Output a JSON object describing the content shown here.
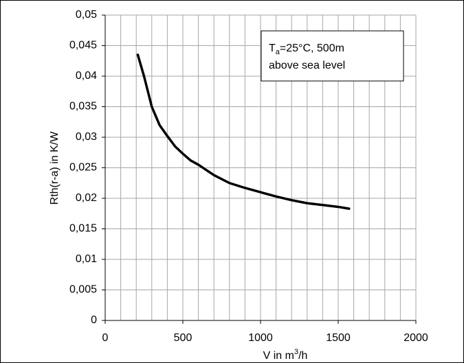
{
  "chart_data": {
    "type": "line",
    "x_label_parts": [
      "V in m",
      "3",
      "/h"
    ],
    "y_label": "Rth(r-a) in K/W",
    "annotation_parts": [
      "T",
      "a",
      "=25°C, 500m",
      "above sea level"
    ],
    "series": [
      {
        "color": "#000000",
        "x": [
          210,
          250,
          300,
          350,
          400,
          450,
          500,
          550,
          600,
          700,
          800,
          900,
          1000,
          1100,
          1200,
          1300,
          1400,
          1500,
          1570
        ],
        "values": [
          0.0435,
          0.04,
          0.035,
          0.032,
          0.0302,
          0.0285,
          0.0273,
          0.0262,
          0.0255,
          0.0238,
          0.0225,
          0.0217,
          0.021,
          0.0203,
          0.0197,
          0.0192,
          0.0189,
          0.0186,
          0.0183
        ]
      }
    ],
    "xlim": [
      0,
      2000
    ],
    "ylim": [
      0,
      0.05
    ],
    "xticks": [
      0,
      500,
      1000,
      1500,
      2000
    ],
    "xgrid": [
      0,
      100,
      200,
      300,
      400,
      500,
      600,
      700,
      800,
      900,
      1000,
      1100,
      1200,
      1300,
      1400,
      1500,
      1600,
      1700,
      1800,
      1900,
      2000
    ],
    "yticks": [
      0,
      {
        "value": 0.005,
        "label": "0,005"
      },
      {
        "value": 0.01,
        "label": "0,01"
      },
      {
        "value": 0.015,
        "label": "0,015"
      },
      {
        "value": 0.02,
        "label": "0,02"
      },
      {
        "value": 0.025,
        "label": "0,025"
      },
      {
        "value": 0.03,
        "label": "0,03"
      },
      {
        "value": 0.035,
        "label": "0,035"
      },
      {
        "value": 0.04,
        "label": "0,04"
      },
      {
        "value": 0.045,
        "label": "0,045"
      },
      {
        "value": 0.05,
        "label": "0,05"
      }
    ],
    "grid": true
  }
}
